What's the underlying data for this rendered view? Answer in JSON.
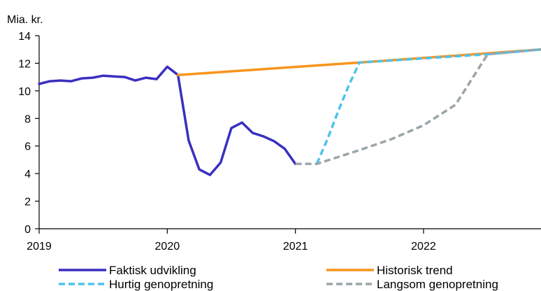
{
  "chart_data": {
    "type": "line",
    "title": "",
    "unit_label": "Mia. kr.",
    "xlabel": "",
    "ylabel": "",
    "ylim": [
      0,
      14
    ],
    "xlim": [
      "2019-01",
      "2022-12"
    ],
    "y_ticks": [
      0,
      2,
      4,
      6,
      8,
      10,
      12,
      14
    ],
    "x_ticks": [
      "2019",
      "2020",
      "2021",
      "2022"
    ],
    "grid": false,
    "legend_position": "bottom",
    "series": [
      {
        "name": "Faktisk udvikling",
        "color": "#3a2fc0",
        "style": "solid",
        "x": [
          "2019-01",
          "2019-02",
          "2019-03",
          "2019-04",
          "2019-05",
          "2019-06",
          "2019-07",
          "2019-08",
          "2019-09",
          "2019-10",
          "2019-11",
          "2019-12",
          "2020-01",
          "2020-02",
          "2020-03",
          "2020-04",
          "2020-05",
          "2020-06",
          "2020-07",
          "2020-08",
          "2020-09",
          "2020-10",
          "2020-11",
          "2020-12",
          "2021-01"
        ],
        "y": [
          10.5,
          10.7,
          10.75,
          10.7,
          10.9,
          10.95,
          11.1,
          11.05,
          11.0,
          10.75,
          10.95,
          10.85,
          11.75,
          11.15,
          6.4,
          4.3,
          3.9,
          4.8,
          7.3,
          7.7,
          6.95,
          6.7,
          6.35,
          5.8,
          4.7
        ]
      },
      {
        "name": "Historisk trend",
        "color": "#f7941d",
        "style": "solid",
        "x": [
          "2020-02",
          "2021-07",
          "2022-12"
        ],
        "y": [
          11.15,
          12.05,
          13.0
        ]
      },
      {
        "name": "Hurtig genopretning",
        "color": "#4dc3ee",
        "style": "dashed",
        "x": [
          "2021-03",
          "2021-04",
          "2021-05",
          "2021-06",
          "2021-07",
          "2022-01",
          "2022-07",
          "2022-12"
        ],
        "y": [
          4.7,
          6.5,
          8.5,
          10.4,
          12.05,
          12.35,
          12.65,
          13.0
        ]
      },
      {
        "name": "Langsom genopretning",
        "color": "#9aa5a8",
        "style": "dashed",
        "x": [
          "2021-01",
          "2021-03",
          "2021-07",
          "2021-10",
          "2022-01",
          "2022-04",
          "2022-07",
          "2022-12"
        ],
        "y": [
          4.7,
          4.7,
          5.7,
          6.5,
          7.5,
          9.0,
          12.65,
          13.0
        ]
      }
    ]
  }
}
